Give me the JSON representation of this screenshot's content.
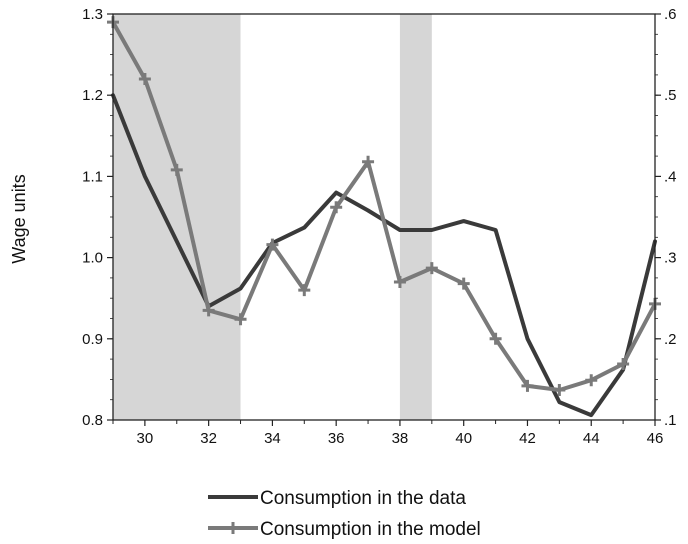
{
  "chart_data": {
    "type": "line",
    "title": "",
    "xlabel": "",
    "ylabel": "Wage units",
    "xlim": [
      29,
      46
    ],
    "ylim": [
      0.8,
      1.3
    ],
    "y2lim": [
      0.1,
      0.6
    ],
    "x_ticks": [
      30,
      32,
      34,
      36,
      38,
      40,
      42,
      44,
      46
    ],
    "x_tick_labels": [
      "30",
      "32",
      "34",
      "36",
      "38",
      "40",
      "42",
      "44",
      "46"
    ],
    "y_ticks": [
      0.8,
      0.9,
      1.0,
      1.1,
      1.2,
      1.3
    ],
    "y_tick_labels": [
      "0.8",
      "0.9",
      "1.0",
      "1.1",
      "1.2",
      "1.3"
    ],
    "y2_ticks": [
      0.1,
      0.2,
      0.3,
      0.4,
      0.5,
      0.6
    ],
    "y2_tick_labels": [
      ".1",
      ".2",
      ".3",
      ".4",
      ".5",
      ".6"
    ],
    "shaded_regions": [
      [
        29,
        33
      ],
      [
        38,
        39
      ]
    ],
    "grid": false,
    "legend_position": "bottom",
    "series": [
      {
        "name": "Consumption in the data",
        "axis": "left",
        "color": "#3a3a3a",
        "marker": "none",
        "x": [
          29,
          30,
          31,
          32,
          33,
          34,
          35,
          36,
          37,
          38,
          39,
          40,
          41,
          42,
          43,
          44,
          45,
          46
        ],
        "y": [
          1.2,
          1.1,
          1.02,
          0.94,
          0.962,
          1.018,
          1.037,
          1.08,
          1.058,
          1.034,
          1.034,
          1.045,
          1.034,
          0.9,
          0.822,
          0.806,
          0.862,
          1.02
        ]
      },
      {
        "name": "Consumption in the model",
        "axis": "left",
        "color": "#7a7a7a",
        "marker": "plus",
        "x": [
          29,
          30,
          31,
          32,
          33,
          34,
          35,
          36,
          37,
          38,
          39,
          40,
          41,
          42,
          43,
          44,
          45,
          46
        ],
        "y": [
          1.29,
          1.22,
          1.108,
          0.935,
          0.924,
          1.016,
          0.96,
          1.062,
          1.118,
          0.97,
          0.987,
          0.968,
          0.9,
          0.842,
          0.837,
          0.849,
          0.869,
          0.943
        ]
      }
    ]
  }
}
